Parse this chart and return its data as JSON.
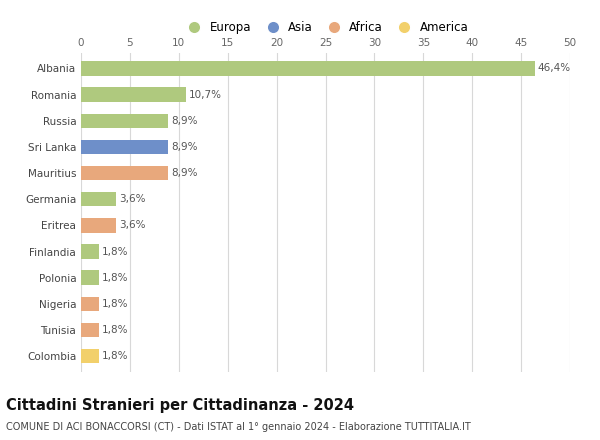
{
  "categories": [
    "Albania",
    "Romania",
    "Russia",
    "Sri Lanka",
    "Mauritius",
    "Germania",
    "Eritrea",
    "Finlandia",
    "Polonia",
    "Nigeria",
    "Tunisia",
    "Colombia"
  ],
  "values": [
    46.4,
    10.7,
    8.9,
    8.9,
    8.9,
    3.6,
    3.6,
    1.8,
    1.8,
    1.8,
    1.8,
    1.8
  ],
  "labels": [
    "46,4%",
    "10,7%",
    "8,9%",
    "8,9%",
    "8,9%",
    "3,6%",
    "3,6%",
    "1,8%",
    "1,8%",
    "1,8%",
    "1,8%",
    "1,8%"
  ],
  "colors": [
    "#afc97e",
    "#afc97e",
    "#afc97e",
    "#6e8fc9",
    "#e8a87c",
    "#afc97e",
    "#e8a87c",
    "#afc97e",
    "#afc97e",
    "#e8a87c",
    "#e8a87c",
    "#f2d06b"
  ],
  "legend_labels": [
    "Europa",
    "Asia",
    "Africa",
    "America"
  ],
  "legend_colors": [
    "#afc97e",
    "#6e8fc9",
    "#e8a87c",
    "#f2d06b"
  ],
  "title": "Cittadini Stranieri per Cittadinanza - 2024",
  "subtitle": "COMUNE DI ACI BONACCORSI (CT) - Dati ISTAT al 1° gennaio 2024 - Elaborazione TUTTITALIA.IT",
  "xlim": [
    0,
    50
  ],
  "xticks": [
    0,
    5,
    10,
    15,
    20,
    25,
    30,
    35,
    40,
    45,
    50
  ],
  "background_color": "#ffffff",
  "grid_color": "#d8d8d8",
  "bar_height": 0.55,
  "label_fontsize": 7.5,
  "tick_fontsize": 7.5,
  "title_fontsize": 10.5,
  "subtitle_fontsize": 7.0
}
